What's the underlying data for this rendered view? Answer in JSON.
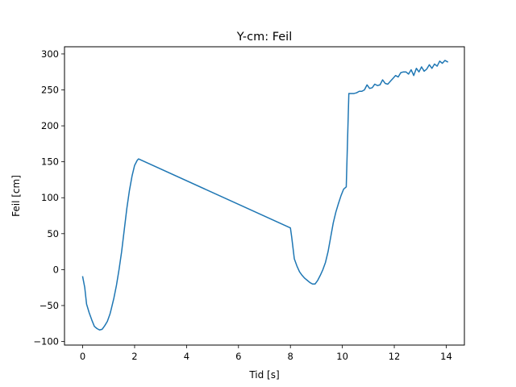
{
  "chart_data": {
    "type": "line",
    "title": "Y-cm: Feil",
    "xlabel": "Tid [s]",
    "ylabel": "Feil [cm]",
    "xlim": [
      -0.7,
      14.7
    ],
    "ylim": [
      -105,
      310
    ],
    "xticks": [
      0,
      2,
      4,
      6,
      8,
      10,
      12,
      14
    ],
    "yticks": [
      -100,
      -50,
      0,
      50,
      100,
      150,
      200,
      250,
      300
    ],
    "grid": false,
    "series": [
      {
        "color": "#1f77b4",
        "x": [
          0,
          0.08,
          0.15,
          0.25,
          0.35,
          0.45,
          0.55,
          0.65,
          0.75,
          0.85,
          0.95,
          1.05,
          1.1,
          1.2,
          1.3,
          1.4,
          1.5,
          1.6,
          1.7,
          1.8,
          1.9,
          2.0,
          2.1,
          2.15,
          8.0,
          8.05,
          8.1,
          8.15,
          8.25,
          8.35,
          8.45,
          8.55,
          8.65,
          8.75,
          8.85,
          8.95,
          9.05,
          9.15,
          9.25,
          9.35,
          9.45,
          9.55,
          9.65,
          9.75,
          9.85,
          9.95,
          10.05,
          10.15,
          10.25,
          10.35,
          10.45,
          10.55,
          10.65,
          10.75,
          10.85,
          10.95,
          11.05,
          11.15,
          11.25,
          11.35,
          11.45,
          11.55,
          11.65,
          11.75,
          11.85,
          11.95,
          12.05,
          12.15,
          12.25,
          12.35,
          12.45,
          12.55,
          12.65,
          12.75,
          12.85,
          12.95,
          13.05,
          13.15,
          13.25,
          13.35,
          13.45,
          13.55,
          13.65,
          13.75,
          13.85,
          13.95,
          14.05
        ],
        "y": [
          -10,
          -25,
          -48,
          -60,
          -70,
          -79,
          -82,
          -84,
          -83,
          -78,
          -72,
          -62,
          -55,
          -40,
          -22,
          0,
          25,
          55,
          85,
          110,
          130,
          145,
          152,
          154,
          58,
          45,
          30,
          15,
          5,
          -3,
          -8,
          -12,
          -15,
          -18,
          -20,
          -20,
          -15,
          -8,
          0,
          10,
          25,
          45,
          65,
          80,
          92,
          103,
          112,
          115,
          245,
          245,
          245,
          246,
          248,
          248,
          250,
          257,
          252,
          253,
          258,
          256,
          257,
          264,
          259,
          258,
          262,
          266,
          270,
          268,
          274,
          275,
          275,
          272,
          278,
          270,
          280,
          275,
          282,
          276,
          279,
          285,
          280,
          286,
          283,
          290,
          287,
          291,
          289
        ]
      }
    ]
  }
}
